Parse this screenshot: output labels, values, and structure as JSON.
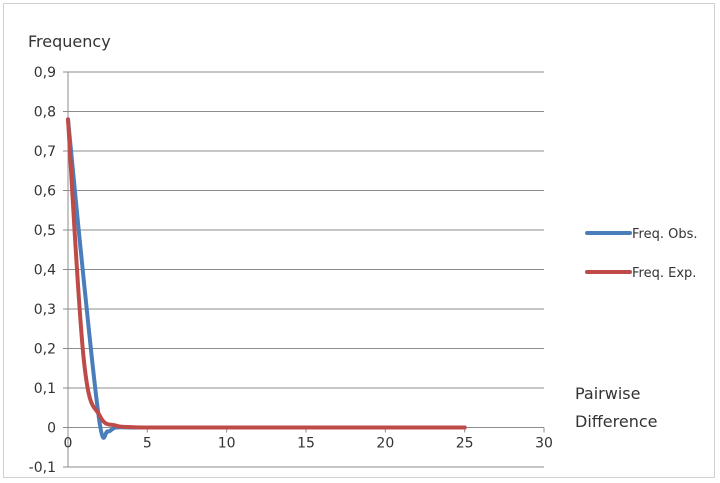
{
  "chart_data": {
    "type": "line",
    "ylabel": "Frequency",
    "xlabel_lines": [
      "Pairwise",
      "Difference"
    ],
    "xlim": [
      0,
      30
    ],
    "ylim": [
      -0.1,
      0.9
    ],
    "x_ticks": [
      0,
      5,
      10,
      15,
      20,
      25,
      30
    ],
    "y_ticks": [
      -0.1,
      0,
      0.1,
      0.2,
      0.3,
      0.4,
      0.5,
      0.6,
      0.7,
      0.8,
      0.9
    ],
    "x_tick_labels": [
      "0",
      "5",
      "10",
      "15",
      "20",
      "25",
      "30"
    ],
    "y_tick_labels": [
      "-0,1",
      "0",
      "0,1",
      "0,2",
      "0,3",
      "0,4",
      "0,5",
      "0,6",
      "0,7",
      "0,8",
      "0,9"
    ],
    "grid": "horizontal",
    "legend_position": "right",
    "series": [
      {
        "name": "Freq. Obs.",
        "color": "#4a7ebb",
        "x": [
          0,
          1,
          2,
          2.5,
          3,
          4,
          5,
          6,
          7,
          8,
          9,
          10,
          11,
          12,
          13,
          14,
          15,
          16,
          17,
          18,
          19,
          20,
          21,
          22,
          23,
          24,
          25
        ],
        "y": [
          0.78,
          0.37,
          0.01,
          -0.01,
          0,
          0,
          0,
          0,
          0,
          0,
          0,
          0,
          0,
          0,
          0,
          0,
          0,
          0,
          0,
          0,
          0,
          0,
          0,
          0,
          0,
          0,
          0
        ]
      },
      {
        "name": "Freq. Exp.",
        "color": "#be4b48",
        "x": [
          0,
          1,
          2,
          3,
          4,
          5,
          6,
          7,
          8,
          9,
          10,
          11,
          12,
          13,
          14,
          15,
          16,
          17,
          18,
          19,
          20,
          21,
          22,
          23,
          24,
          25
        ],
        "y": [
          0.78,
          0.17,
          0.03,
          0.005,
          0.001,
          0,
          0,
          0,
          0,
          0,
          0,
          0,
          0,
          0,
          0,
          0,
          0,
          0,
          0,
          0,
          0,
          0,
          0,
          0,
          0,
          0
        ]
      }
    ]
  }
}
